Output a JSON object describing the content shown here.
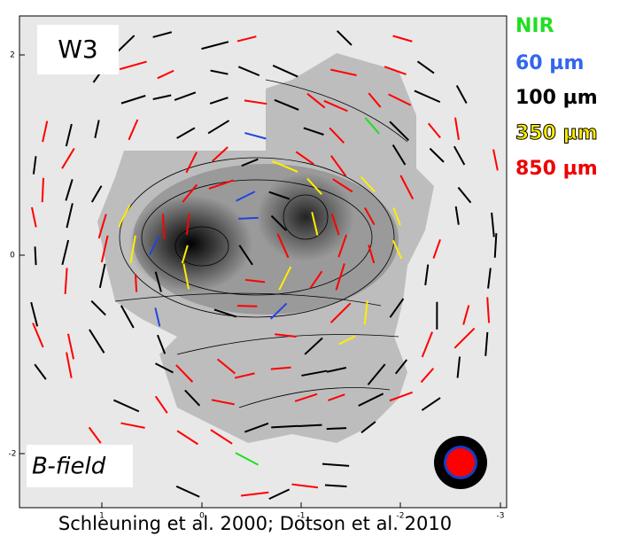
{
  "figure": {
    "panel_label": "W3",
    "field_label": "B-field",
    "legend": [
      "NIR",
      "60 µm",
      "100 µm",
      "350 µm",
      "850 µm"
    ],
    "x_tick_labels": [
      "1",
      "0",
      "-1",
      "-2",
      "-3"
    ],
    "y_tick_labels": [
      "2",
      "0",
      "-2"
    ],
    "caption": "Schleuning et al. 2000; Dotson et al. 2010"
  }
}
